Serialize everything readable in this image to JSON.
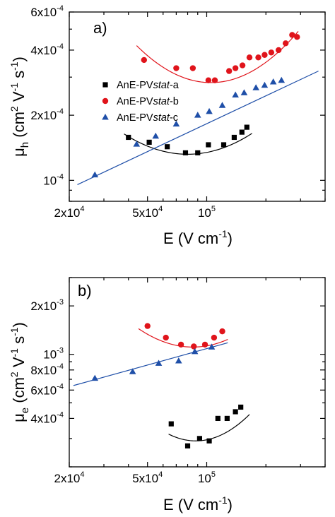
{
  "chart_data": [
    {
      "type": "scatter",
      "panel_label": "a)",
      "xlabel": {
        "main": "E (V cm",
        "sup": "-1",
        "close": ")"
      },
      "ylabel": {
        "sym": "μ",
        "sub": "h",
        "pre": " (cm",
        "sup1": "2",
        "mid": " V",
        "sup2": "-1",
        "s": " s",
        "sup3": "-1",
        "close": ")"
      },
      "x_scale": "log",
      "y_scale": "log",
      "xlim": [
        20000,
        400000
      ],
      "ylim": [
        8e-05,
        0.0006
      ],
      "x_ticks": [
        {
          "value": 20000,
          "mant": "2x10",
          "exp": "4"
        },
        {
          "value": 50000,
          "mant": "5x10",
          "exp": "4"
        },
        {
          "value": 100000,
          "mant": "10",
          "exp": "5"
        }
      ],
      "y_ticks": [
        {
          "value": 0.0001,
          "mant": "10",
          "exp": "-4"
        },
        {
          "value": 0.0002,
          "mant": "2x10",
          "exp": "-4"
        },
        {
          "value": 0.0004,
          "mant": "4x10",
          "exp": "-4"
        },
        {
          "value": 0.0006,
          "mant": "6x10",
          "exp": "-4"
        }
      ],
      "legend": {
        "position": "left",
        "entries": [
          {
            "pre": "AnE-PV",
            "it": "stat",
            "post": "-a",
            "marker": "square",
            "color": "#000000"
          },
          {
            "pre": "AnE-PV",
            "it": "stat",
            "post": "-b",
            "marker": "circle",
            "color": "#e0141b"
          },
          {
            "pre": "AnE-PV",
            "it": "stat",
            "post": "-c",
            "marker": "triangle",
            "color": "#1f4fa8"
          }
        ]
      },
      "series": [
        {
          "name": "AnE-PVstat-a",
          "marker": "square",
          "color": "#000000",
          "x": [
            40000,
            51000,
            63000,
            78000,
            90000,
            102000,
            122000,
            138000,
            151000,
            160000
          ],
          "y": [
            0.000158,
            0.00015,
            0.000143,
            0.000134,
            0.000134,
            0.000146,
            0.000146,
            0.000158,
            0.000167,
            0.000176
          ]
        },
        {
          "name": "AnE-PVstat-b",
          "marker": "circle",
          "color": "#e0141b",
          "x": [
            48000,
            70000,
            85000,
            102000,
            110000,
            130000,
            140000,
            152000,
            165000,
            183000,
            197000,
            213000,
            232000,
            252000,
            272000,
            288000
          ],
          "y": [
            0.00036,
            0.00033,
            0.00033,
            0.00029,
            0.00029,
            0.00032,
            0.00033,
            0.00034,
            0.00037,
            0.00037,
            0.00038,
            0.00039,
            0.0004,
            0.00043,
            0.00047,
            0.00046
          ]
        },
        {
          "name": "AnE-PVstat-c",
          "marker": "triangle",
          "color": "#1f4fa8",
          "x": [
            27000,
            44000,
            55000,
            70000,
            90000,
            103000,
            120000,
            140000,
            155000,
            178000,
            197000,
            218000,
            240000
          ],
          "y": [
            0.000106,
            0.000147,
            0.00016,
            0.000182,
            0.0002,
            0.000208,
            0.000222,
            0.000248,
            0.000254,
            0.000268,
            0.000275,
            0.000285,
            0.00029
          ]
        }
      ],
      "fits": [
        {
          "series": "AnE-PVstat-a",
          "kind": "parabola",
          "color": "#000000",
          "x_range": [
            38000,
            170000
          ],
          "x_min": 80000,
          "y_min": 0.000132,
          "curvature": 0.9
        },
        {
          "series": "AnE-PVstat-b",
          "kind": "parabola",
          "color": "#e0141b",
          "x_range": [
            44000,
            292000
          ],
          "x_min": 105000,
          "y_min": 0.000283,
          "curvature": 1.2
        },
        {
          "series": "AnE-PVstat-c",
          "kind": "line",
          "color": "#1f4fa8",
          "x_range": [
            22000,
            370000
          ],
          "y_range": [
            9.55e-05,
            0.00032
          ]
        }
      ]
    },
    {
      "type": "scatter",
      "panel_label": "b)",
      "xlabel": {
        "main": "E (V cm",
        "sup": "-1",
        "close": ")"
      },
      "ylabel": {
        "sym": "μ",
        "sub": "e",
        "pre": " (cm",
        "sup1": "2",
        "mid": " V",
        "sup2": "-1",
        "s": " s",
        "sup3": "-1",
        "close": ")"
      },
      "x_scale": "log",
      "y_scale": "log",
      "xlim": [
        20000,
        400000
      ],
      "ylim": [
        0.0002,
        0.003
      ],
      "x_ticks": [
        {
          "value": 20000,
          "mant": "2x10",
          "exp": "4"
        },
        {
          "value": 50000,
          "mant": "5x10",
          "exp": "4"
        },
        {
          "value": 100000,
          "mant": "10",
          "exp": "5"
        }
      ],
      "y_ticks": [
        {
          "value": 0.0004,
          "mant": "4x10",
          "exp": "-4"
        },
        {
          "value": 0.0006,
          "mant": "6x10",
          "exp": "-4"
        },
        {
          "value": 0.0008,
          "mant": "8x10",
          "exp": "-4"
        },
        {
          "value": 0.001,
          "mant": "10",
          "exp": "-3"
        },
        {
          "value": 0.002,
          "mant": "2x10",
          "exp": "-3"
        }
      ],
      "series": [
        {
          "name": "AnE-PVstat-a",
          "marker": "square",
          "color": "#000000",
          "x": [
            66000,
            80000,
            92000,
            103000,
            114000,
            127000,
            140000,
            149000
          ],
          "y": [
            0.00037,
            0.00027,
            0.0003,
            0.00029,
            0.0004,
            0.0004,
            0.00044,
            0.00047
          ]
        },
        {
          "name": "AnE-PVstat-b",
          "marker": "circle",
          "color": "#e0141b",
          "x": [
            50000,
            62000,
            74000,
            86000,
            98000,
            109000,
            120000
          ],
          "y": [
            0.0015,
            0.00127,
            0.00115,
            0.00112,
            0.00115,
            0.00127,
            0.00139
          ]
        },
        {
          "name": "AnE-PVstat-c",
          "marker": "triangle",
          "color": "#1f4fa8",
          "x": [
            27000,
            42000,
            57000,
            72000,
            87000,
            106000
          ],
          "y": [
            0.00071,
            0.00078,
            0.00088,
            0.00091,
            0.00104,
            0.00111
          ]
        }
      ],
      "fits": [
        {
          "series": "AnE-PVstat-a",
          "kind": "parabola",
          "color": "#000000",
          "x_range": [
            64000,
            165000
          ],
          "x_min": 88000,
          "y_min": 0.00029,
          "curvature": 2.2
        },
        {
          "series": "AnE-PVstat-b",
          "kind": "parabola",
          "color": "#e0141b",
          "x_range": [
            45000,
            128000
          ],
          "x_min": 85000,
          "y_min": 0.00111,
          "curvature": 1.5
        },
        {
          "series": "AnE-PVstat-c",
          "kind": "line",
          "color": "#1f4fa8",
          "x_range": [
            21000,
            128000
          ],
          "y_range": [
            0.00064,
            0.00118
          ]
        }
      ]
    }
  ]
}
